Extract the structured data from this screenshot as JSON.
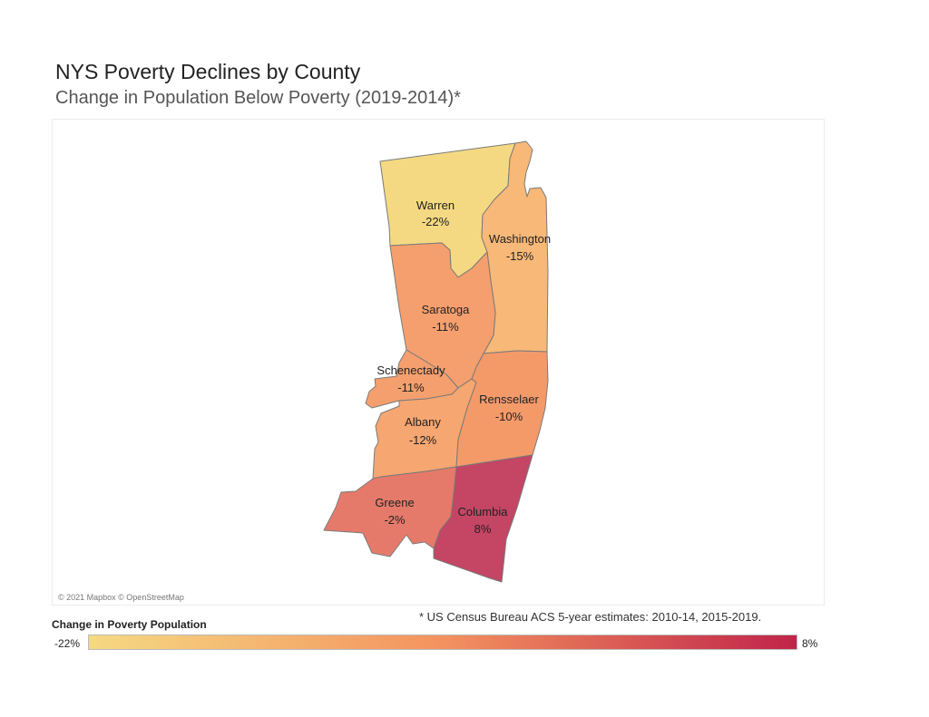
{
  "title": "NYS Poverty Declines by County",
  "subtitle": "Change in Population Below Poverty (2019-2014)*",
  "attribution": "© 2021 Mapbox © OpenStreetMap",
  "footnote": "* US Census Bureau ACS 5-year estimates: 2010-14, 2015-2019.",
  "legend": {
    "title": "Change in Poverty Population",
    "min_label": "-22%",
    "max_label": "8%",
    "min_color": "#f5d982",
    "mid_color": "#f4925f",
    "max_color": "#c0254a"
  },
  "counties": [
    {
      "name": "Warren",
      "value": "-22%",
      "color": "#f5d982"
    },
    {
      "name": "Washington",
      "value": "-15%",
      "color": "#f7b878"
    },
    {
      "name": "Saratoga",
      "value": "-11%",
      "color": "#f59f6e"
    },
    {
      "name": "Schenectady",
      "value": "-11%",
      "color": "#f59f6e"
    },
    {
      "name": "Albany",
      "value": "-12%",
      "color": "#f6a670"
    },
    {
      "name": "Rensselaer",
      "value": "-10%",
      "color": "#f49a69"
    },
    {
      "name": "Greene",
      "value": "-2%",
      "color": "#e67a6a"
    },
    {
      "name": "Columbia",
      "value": "8%",
      "color": "#c44564"
    }
  ]
}
